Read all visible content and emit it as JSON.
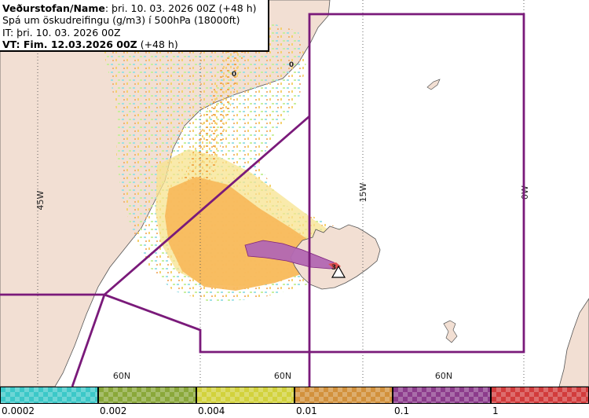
{
  "title": {
    "line1_bold": "Veðurstofan/Name",
    "line1_rest": ": þri. 10. 03. 2026 00Z (+48 h)",
    "line2": "Spá um öskudreifingu (g/m3) í 500hPa (18000ft)",
    "line3": "IT: þri. 10. 03. 2026 00Z",
    "line4_bold": "VT: Fim. 12.03.2026 00Z",
    "line4_rest": " (+48 h)"
  },
  "grid_labels": {
    "lon": [
      "45W",
      "15W",
      "0W"
    ],
    "lat": [
      "60N",
      "60N",
      "60N"
    ]
  },
  "contour_labels": [
    "0",
    "0",
    "3"
  ],
  "legend": {
    "ticks": [
      "0.0002",
      "0.002",
      "0.004",
      "0.01",
      "0.1",
      "1"
    ],
    "colors": [
      "#3cc8c8",
      "#8aa83a",
      "#d2d23c",
      "#d2913c",
      "#8c3c8c",
      "#d23c3c"
    ]
  },
  "colors": {
    "land": "#f2dfd3",
    "boundary": "#7a1a7a",
    "ash_light": "#f7e38f",
    "ash_orange": "#f7b85a",
    "ash_purple": "#b368b3"
  }
}
